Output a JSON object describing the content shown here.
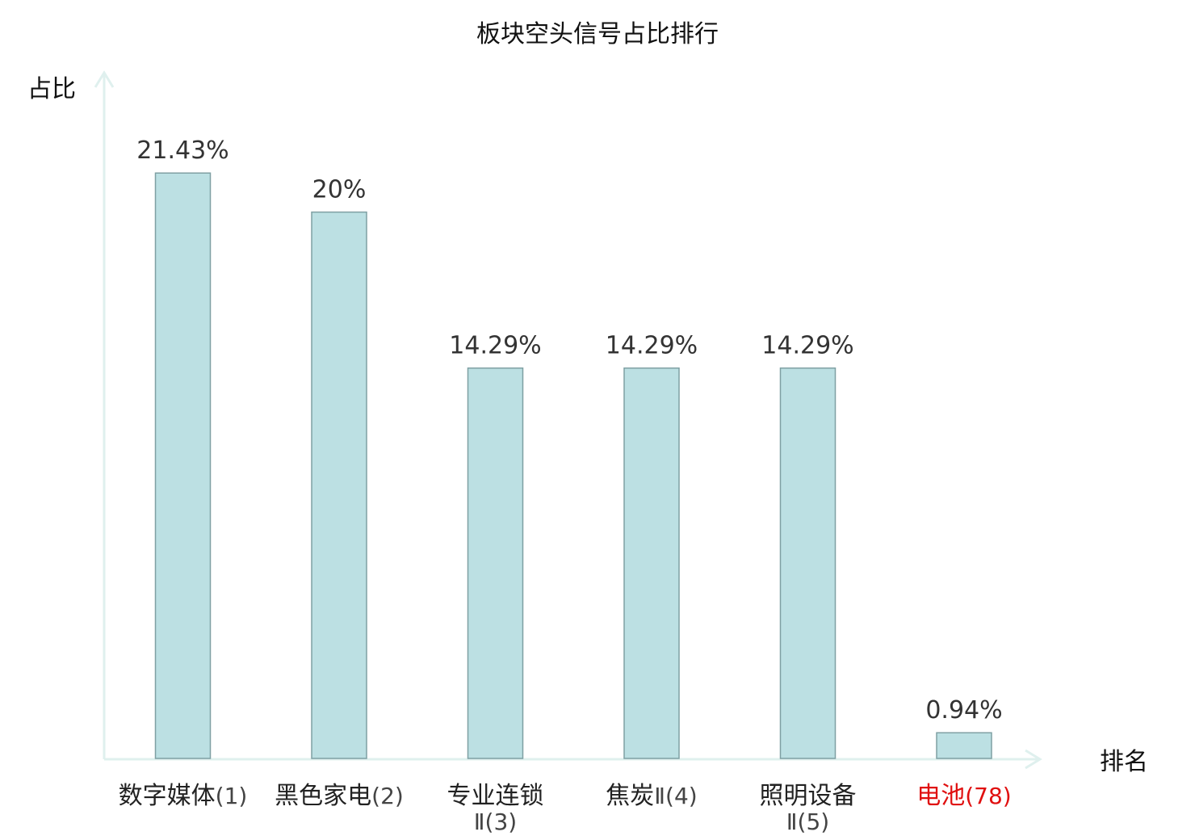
{
  "chart_data": {
    "type": "bar",
    "title": "板块空头信号占比排行",
    "ylabel": "占比",
    "xlabel": "排名",
    "ylim": [
      0,
      25
    ],
    "grid": false,
    "legend": "none",
    "categories": [
      {
        "name": "数字媒体",
        "rank": "(1)"
      },
      {
        "name": "黑色家电",
        "rank": "(2)"
      },
      {
        "name": "专业连锁",
        "rank": "Ⅱ(3)"
      },
      {
        "name": "焦炭",
        "rank": "Ⅱ(4)"
      },
      {
        "name": "照明设备",
        "rank": "Ⅱ(5)"
      },
      {
        "name": "电池",
        "rank": "(78)"
      }
    ],
    "values": [
      21.43,
      20,
      14.29,
      14.29,
      14.29,
      0.94
    ],
    "value_labels": [
      "21.43%",
      "20%",
      "14.29%",
      "14.29%",
      "14.29%",
      "0.94%"
    ],
    "highlight_index": 5,
    "colors": {
      "bar_fill": "#bce0e3",
      "bar_stroke": "#7fa0a3",
      "axis": "#dff0ee",
      "text": "#222222",
      "value_text": "#333333",
      "highlight_text": "#e01010"
    }
  }
}
